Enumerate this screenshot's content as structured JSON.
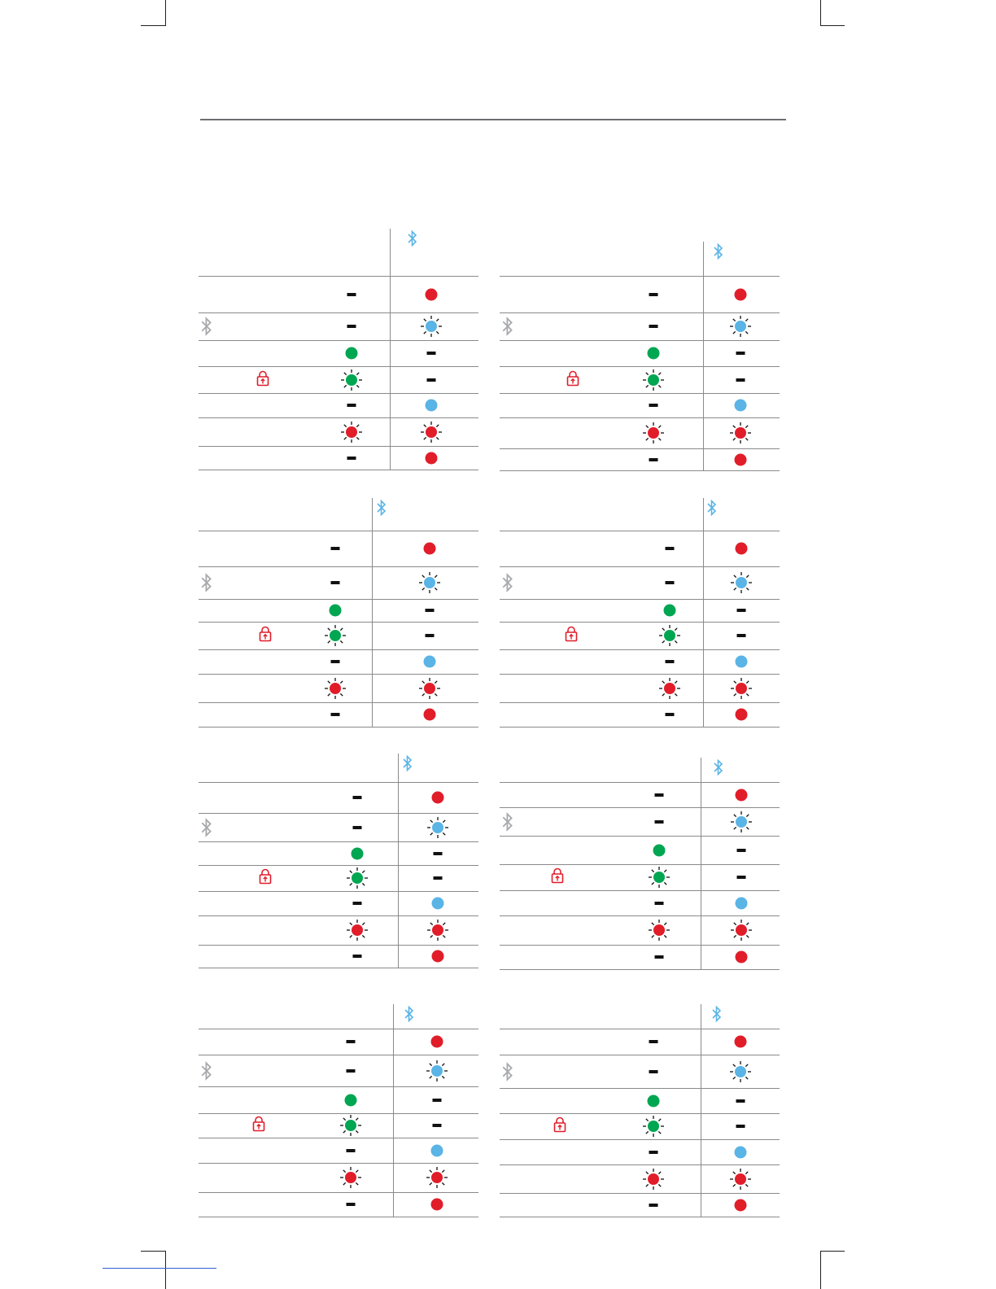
{
  "colors": {
    "red": "#e11d2a",
    "green": "#00a651",
    "blue": "#5ab4e5",
    "dash": "#111111",
    "rule": "#8a8a8a",
    "bluetooth_header": "#5ab4e5",
    "bluetooth_row": "#a7a9ac",
    "lock": "#e11d2a"
  },
  "icons": {
    "column_header": "bluetooth-icon",
    "row_bluetooth": "bluetooth-icon",
    "row_lock": "lock-icon",
    "steady": "solid-dot",
    "flashing": "flashing-dot",
    "off": "dash"
  },
  "tables": [
    {
      "rows": [
        [
          "off",
          "red"
        ],
        [
          "off",
          "blue-flash"
        ],
        [
          "green",
          "off"
        ],
        [
          "green-flash",
          "off"
        ],
        [
          "off",
          "blue"
        ],
        [
          "red-flash",
          "red-flash"
        ],
        [
          "off",
          "red"
        ]
      ]
    },
    {
      "rows": [
        [
          "off",
          "red"
        ],
        [
          "off",
          "blue-flash"
        ],
        [
          "green",
          "off"
        ],
        [
          "green-flash",
          "off"
        ],
        [
          "off",
          "blue"
        ],
        [
          "red-flash",
          "red-flash"
        ],
        [
          "off",
          "red"
        ]
      ]
    },
    {
      "rows": [
        [
          "off",
          "red"
        ],
        [
          "off",
          "blue-flash"
        ],
        [
          "green",
          "off"
        ],
        [
          "green-flash",
          "off"
        ],
        [
          "off",
          "blue"
        ],
        [
          "red-flash",
          "red-flash"
        ],
        [
          "off",
          "red"
        ]
      ]
    },
    {
      "rows": [
        [
          "off",
          "red"
        ],
        [
          "off",
          "blue-flash"
        ],
        [
          "green",
          "off"
        ],
        [
          "green-flash",
          "off"
        ],
        [
          "off",
          "blue"
        ],
        [
          "red-flash",
          "red-flash"
        ],
        [
          "off",
          "red"
        ]
      ]
    },
    {
      "rows": [
        [
          "off",
          "red"
        ],
        [
          "off",
          "blue-flash"
        ],
        [
          "green",
          "off"
        ],
        [
          "green-flash",
          "off"
        ],
        [
          "off",
          "blue"
        ],
        [
          "red-flash",
          "red-flash"
        ],
        [
          "off",
          "red"
        ]
      ]
    },
    {
      "rows": [
        [
          "off",
          "red"
        ],
        [
          "off",
          "blue-flash"
        ],
        [
          "green",
          "off"
        ],
        [
          "green-flash",
          "off"
        ],
        [
          "off",
          "blue"
        ],
        [
          "red-flash",
          "red-flash"
        ],
        [
          "off",
          "red"
        ]
      ]
    },
    {
      "rows": [
        [
          "off",
          "red"
        ],
        [
          "off",
          "blue-flash"
        ],
        [
          "green",
          "off"
        ],
        [
          "green-flash",
          "off"
        ],
        [
          "off",
          "blue"
        ],
        [
          "red-flash",
          "red-flash"
        ],
        [
          "off",
          "red"
        ]
      ]
    },
    {
      "rows": [
        [
          "off",
          "red"
        ],
        [
          "off",
          "blue-flash"
        ],
        [
          "green",
          "off"
        ],
        [
          "green-flash",
          "off"
        ],
        [
          "off",
          "blue"
        ],
        [
          "red-flash",
          "red-flash"
        ],
        [
          "off",
          "red"
        ]
      ]
    }
  ]
}
